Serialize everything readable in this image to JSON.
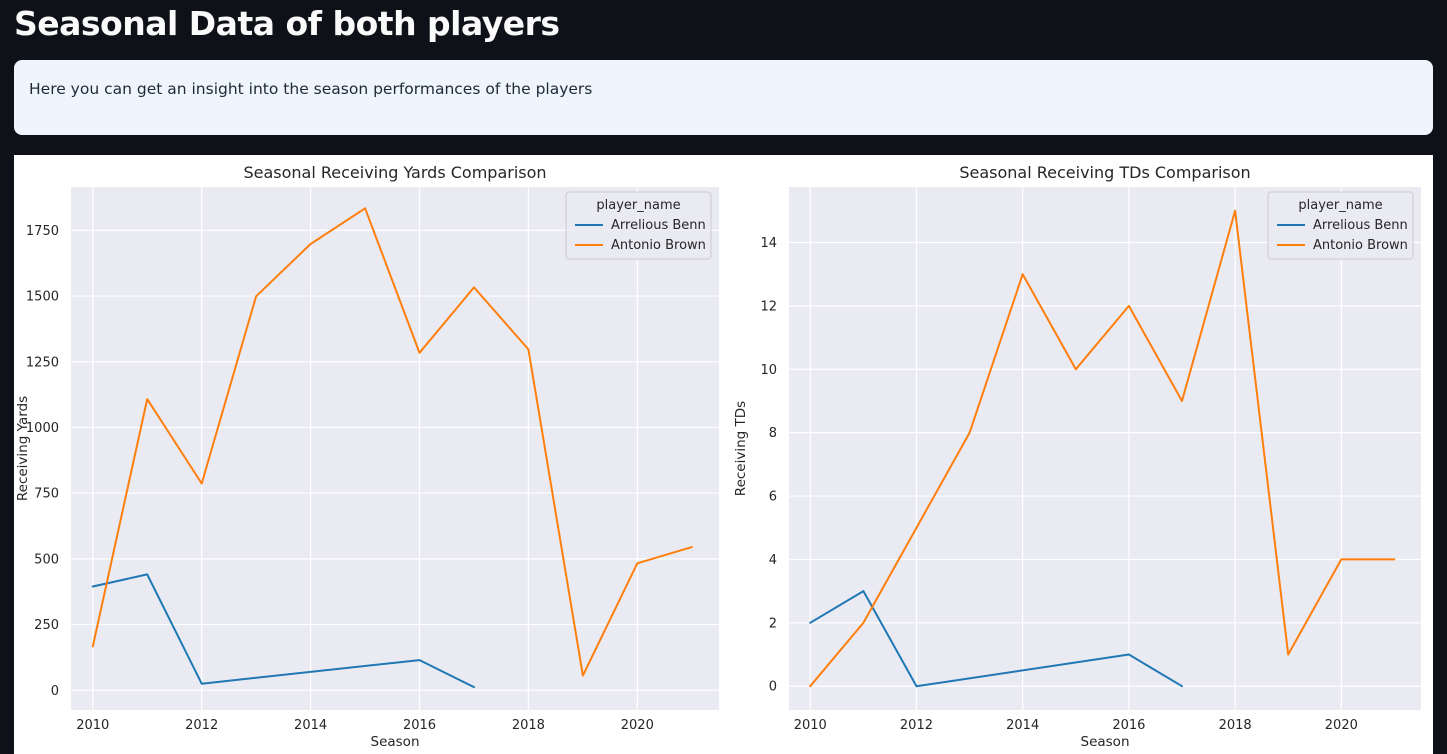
{
  "header": {
    "title": "Seasonal Data of both players"
  },
  "info": {
    "text": "Here you can get an insight into the season performances of the players"
  },
  "chart_data": [
    {
      "type": "line",
      "title": "Seasonal Receiving Yards Comparison",
      "xlabel": "Season",
      "ylabel": "Receiving Yards",
      "xlim": [
        2009.6,
        2021.5
      ],
      "ylim": [
        -75,
        1915
      ],
      "xticks": [
        2010,
        2012,
        2014,
        2016,
        2018,
        2020
      ],
      "yticks": [
        0,
        250,
        500,
        750,
        1000,
        1250,
        1500,
        1750
      ],
      "grid": true,
      "legend": {
        "title": "player_name",
        "placement": "top-right"
      },
      "series": [
        {
          "name": "Arrelious Benn",
          "color": "#1f77b4",
          "x": [
            2010,
            2011,
            2012,
            2016,
            2017
          ],
          "y": [
            395,
            441,
            25,
            115,
            12
          ]
        },
        {
          "name": "Antonio Brown",
          "color": "#ff7f0e",
          "x": [
            2010,
            2011,
            2012,
            2013,
            2014,
            2015,
            2016,
            2017,
            2018,
            2019,
            2020,
            2021
          ],
          "y": [
            167,
            1108,
            787,
            1499,
            1698,
            1834,
            1284,
            1533,
            1297,
            56,
            483,
            545
          ]
        }
      ]
    },
    {
      "type": "line",
      "title": "Seasonal Receiving TDs Comparison",
      "xlabel": "Season",
      "ylabel": "Receiving TDs",
      "xlim": [
        2009.6,
        2021.5
      ],
      "ylim": [
        -0.75,
        15.75
      ],
      "xticks": [
        2010,
        2012,
        2014,
        2016,
        2018,
        2020
      ],
      "yticks": [
        0,
        2,
        4,
        6,
        8,
        10,
        12,
        14
      ],
      "grid": true,
      "legend": {
        "title": "player_name",
        "placement": "top-right"
      },
      "series": [
        {
          "name": "Arrelious Benn",
          "color": "#1f77b4",
          "x": [
            2010,
            2011,
            2012,
            2016,
            2017
          ],
          "y": [
            2,
            3,
            0,
            1,
            0
          ]
        },
        {
          "name": "Antonio Brown",
          "color": "#ff7f0e",
          "x": [
            2010,
            2011,
            2012,
            2013,
            2014,
            2015,
            2016,
            2017,
            2018,
            2019,
            2020,
            2021
          ],
          "y": [
            0,
            2,
            5,
            8,
            13,
            10,
            12,
            9,
            15,
            1,
            4,
            4
          ]
        }
      ]
    }
  ]
}
